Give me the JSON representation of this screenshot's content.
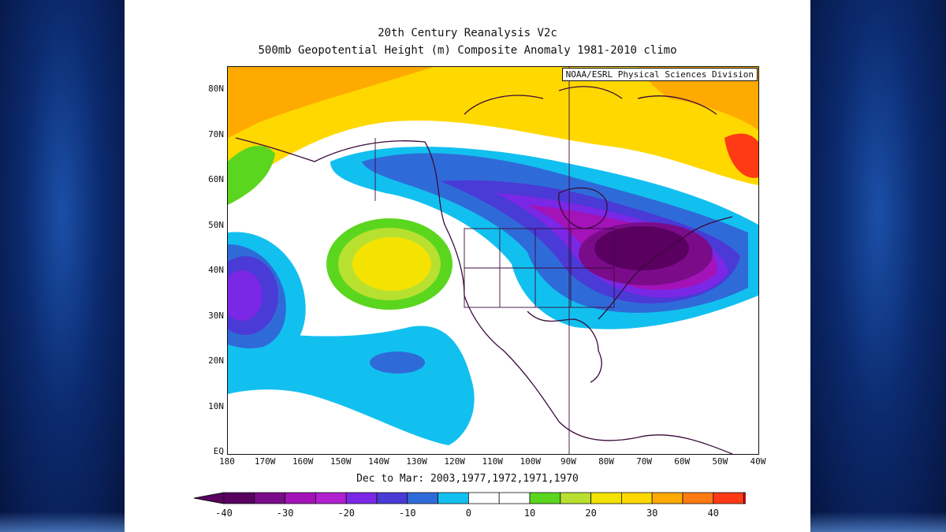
{
  "title_line1": "20th Century Reanalysis V2c",
  "title_line2": "500mb Geopotential Height (m) Composite Anomaly 1981-2010 climo",
  "credit": "NOAA/ESRL Physical Sciences Division",
  "period": "Dec to Mar: 2003,1977,1972,1971,1970",
  "lat_labels": [
    "80N",
    "70N",
    "60N",
    "50N",
    "40N",
    "30N",
    "20N",
    "10N",
    "EQ"
  ],
  "lon_labels": [
    "180",
    "170W",
    "160W",
    "150W",
    "140W",
    "130W",
    "120W",
    "110W",
    "100W",
    "90W",
    "80W",
    "70W",
    "60W",
    "50W",
    "40W"
  ],
  "colorbar": {
    "labels": [
      "-40",
      "-30",
      "-20",
      "-10",
      "0",
      "10",
      "20",
      "30",
      "40"
    ],
    "colors": [
      "#5a0060",
      "#7a0c8a",
      "#a313b8",
      "#b020d0",
      "#7a28e6",
      "#4a3ad6",
      "#2f6bd8",
      "#12c0f0",
      "#ffffff",
      "#ffffff",
      "#5ad61e",
      "#b8e030",
      "#f4e200",
      "#ffd800",
      "#ffaa00",
      "#ff7a10",
      "#ff3a14"
    ],
    "over_color": "#e0102e",
    "under_color": "#5a0060"
  },
  "map_colors": {
    "ocean_bg": "#ffffff",
    "coast": "#3a0a3a"
  }
}
